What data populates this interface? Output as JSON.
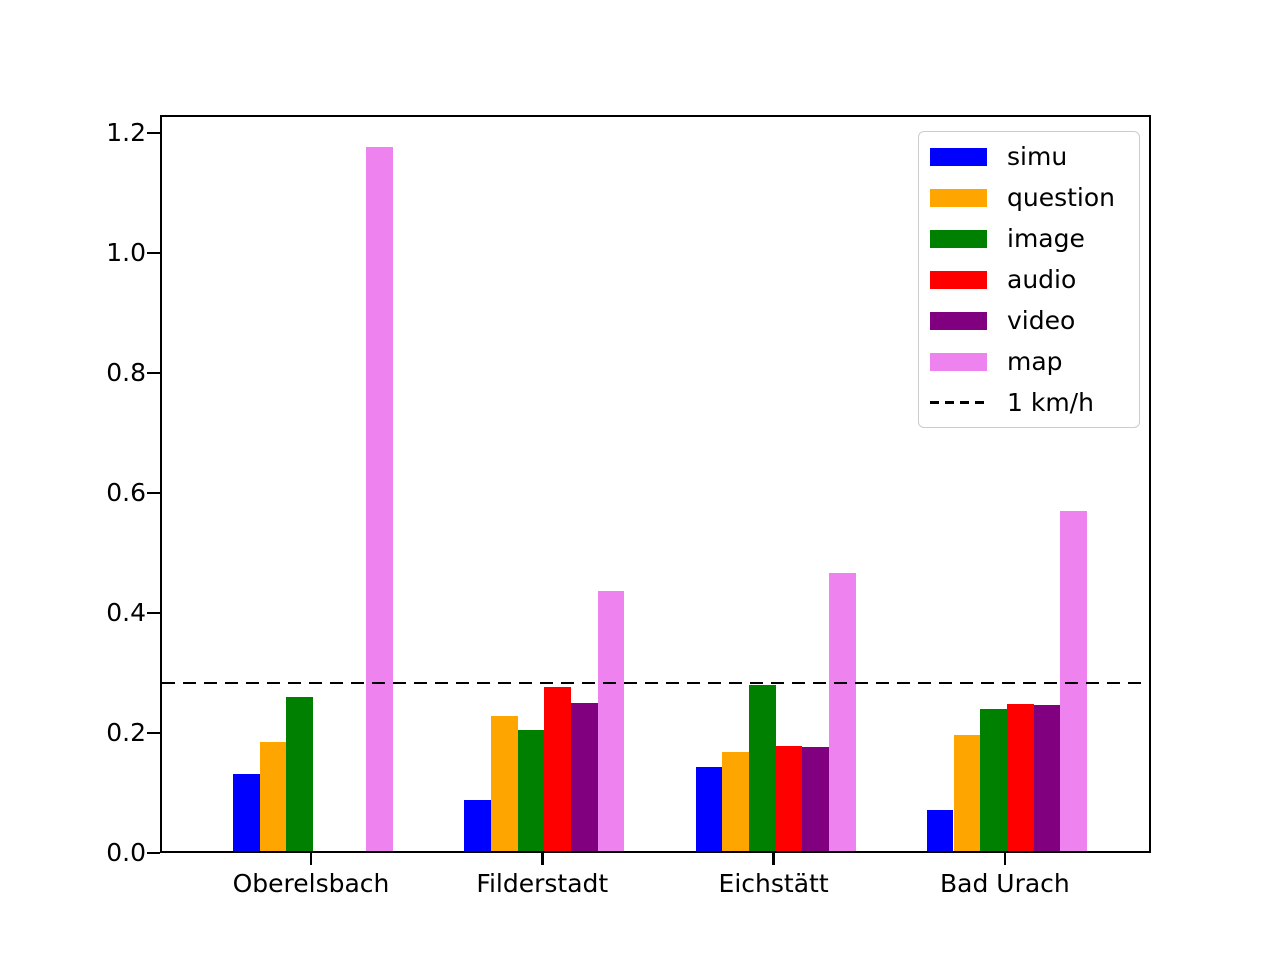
{
  "chart_data": {
    "type": "bar",
    "title": "",
    "categories": [
      "Oberelsbach",
      "Filderstadt",
      "Eichstätt",
      "Bad Urach"
    ],
    "series": [
      {
        "name": "simu",
        "color": "#0000ff",
        "values": [
          0.129,
          0.085,
          0.14,
          0.068
        ]
      },
      {
        "name": "question",
        "color": "#ffa500",
        "values": [
          0.181,
          0.225,
          0.165,
          0.193
        ]
      },
      {
        "name": "image",
        "color": "#008000",
        "values": [
          0.257,
          0.201,
          0.276,
          0.236
        ]
      },
      {
        "name": "audio",
        "color": "#ff0000",
        "values": [
          0.0,
          0.274,
          0.175,
          0.245
        ]
      },
      {
        "name": "video",
        "color": "#800080",
        "values": [
          0.0,
          0.246,
          0.174,
          0.243
        ]
      },
      {
        "name": "map",
        "color": "#ee82ee",
        "values": [
          1.173,
          0.434,
          0.464,
          0.567
        ]
      }
    ],
    "reference_line": {
      "label": "1 km/h",
      "value": 0.278,
      "style": "dashed",
      "color": "#000000"
    },
    "yticks": [
      0.0,
      0.2,
      0.4,
      0.6,
      0.8,
      1.0,
      1.2
    ],
    "ytick_labels": [
      "0.0",
      "0.2",
      "0.4",
      "0.6",
      "0.8",
      "1.0",
      "1.2"
    ],
    "ylim": [
      0,
      1.23
    ],
    "grid": false,
    "legend": {
      "position": "upper right",
      "entries": [
        "simu",
        "question",
        "image",
        "audio",
        "video",
        "map",
        "1 km/h"
      ]
    }
  }
}
